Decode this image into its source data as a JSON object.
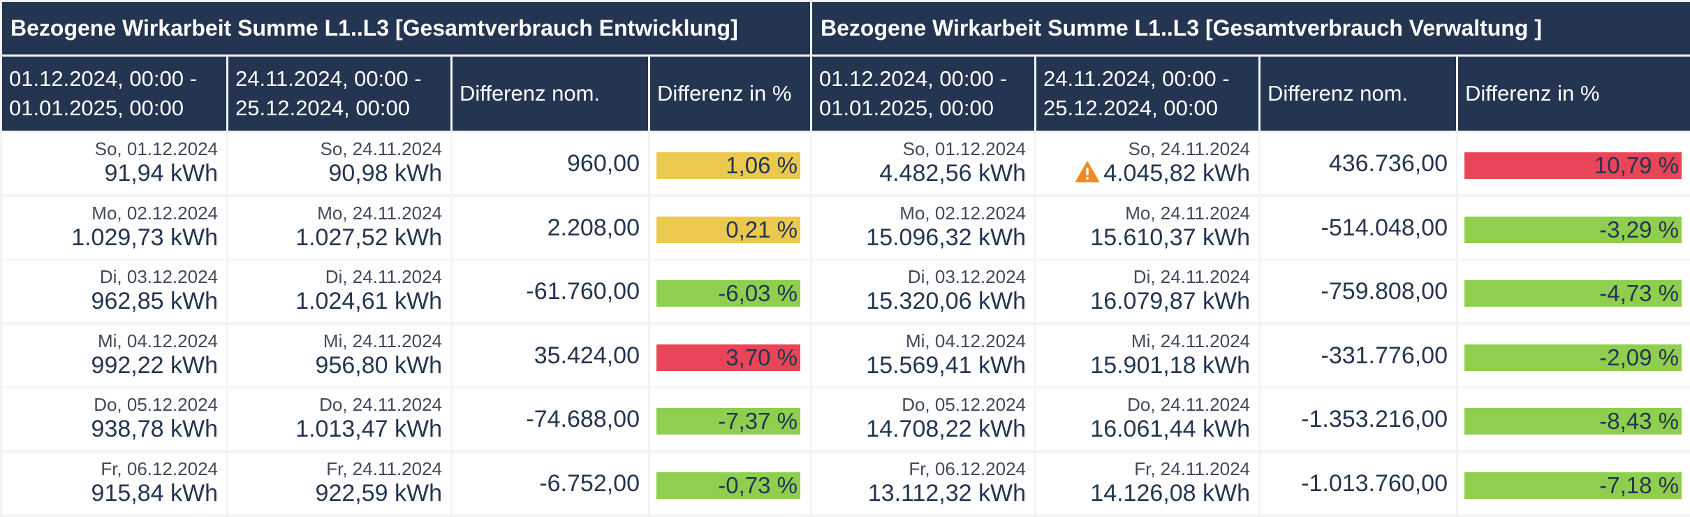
{
  "groups": [
    {
      "title": "Bezogene Wirkarbeit Summe L1..L3 [Gesamtverbrauch Entwicklung]",
      "headers": {
        "period_a_line1": "01.12.2024, 00:00 -",
        "period_a_line2": "01.01.2025, 00:00",
        "period_b_line1": "24.11.2024, 00:00 -",
        "period_b_line2": "25.12.2024, 00:00",
        "diff_nom": "Differenz nom.",
        "diff_pct": "Differenz in %"
      },
      "rows": [
        {
          "a_date": "So, 01.12.2024",
          "a_value": "91,94 kWh",
          "b_date": "So, 24.11.2024",
          "b_value": "90,98 kWh",
          "b_warning": false,
          "diff": "960,00",
          "pct": "1,06 %",
          "pct_value": 1.06,
          "status": "yellow"
        },
        {
          "a_date": "Mo, 02.12.2024",
          "a_value": "1.029,73 kWh",
          "b_date": "Mo, 24.11.2024",
          "b_value": "1.027,52 kWh",
          "b_warning": false,
          "diff": "2.208,00",
          "pct": "0,21 %",
          "pct_value": 0.21,
          "status": "yellow"
        },
        {
          "a_date": "Di, 03.12.2024",
          "a_value": "962,85 kWh",
          "b_date": "Di, 24.11.2024",
          "b_value": "1.024,61 kWh",
          "b_warning": false,
          "diff": "-61.760,00",
          "pct": "-6,03 %",
          "pct_value": -6.03,
          "status": "green"
        },
        {
          "a_date": "Mi, 04.12.2024",
          "a_value": "992,22 kWh",
          "b_date": "Mi, 24.11.2024",
          "b_value": "956,80 kWh",
          "b_warning": false,
          "diff": "35.424,00",
          "pct": "3,70 %",
          "pct_value": 3.7,
          "status": "red"
        },
        {
          "a_date": "Do, 05.12.2024",
          "a_value": "938,78 kWh",
          "b_date": "Do, 24.11.2024",
          "b_value": "1.013,47 kWh",
          "b_warning": false,
          "diff": "-74.688,00",
          "pct": "-7,37 %",
          "pct_value": -7.37,
          "status": "green"
        },
        {
          "a_date": "Fr, 06.12.2024",
          "a_value": "915,84 kWh",
          "b_date": "Fr, 24.11.2024",
          "b_value": "922,59 kWh",
          "b_warning": false,
          "diff": "-6.752,00",
          "pct": "-0,73 %",
          "pct_value": -0.73,
          "status": "green"
        }
      ]
    },
    {
      "title": "Bezogene Wirkarbeit Summe L1..L3 [Gesamtverbrauch Verwaltung ]",
      "headers": {
        "period_a_line1": "01.12.2024, 00:00 -",
        "period_a_line2": "01.01.2025, 00:00",
        "period_b_line1": "24.11.2024, 00:00 -",
        "period_b_line2": "25.12.2024, 00:00",
        "diff_nom": "Differenz nom.",
        "diff_pct": "Differenz in %"
      },
      "rows": [
        {
          "a_date": "So, 01.12.2024",
          "a_value": "4.482,56 kWh",
          "b_date": "So, 24.11.2024",
          "b_value": "4.045,82 kWh",
          "b_warning": true,
          "diff": "436.736,00",
          "pct": "10,79 %",
          "pct_value": 10.79,
          "status": "red"
        },
        {
          "a_date": "Mo, 02.12.2024",
          "a_value": "15.096,32 kWh",
          "b_date": "Mo, 24.11.2024",
          "b_value": "15.610,37 kWh",
          "b_warning": false,
          "diff": "-514.048,00",
          "pct": "-3,29 %",
          "pct_value": -3.29,
          "status": "green"
        },
        {
          "a_date": "Di, 03.12.2024",
          "a_value": "15.320,06 kWh",
          "b_date": "Di, 24.11.2024",
          "b_value": "16.079,87 kWh",
          "b_warning": false,
          "diff": "-759.808,00",
          "pct": "-4,73 %",
          "pct_value": -4.73,
          "status": "green"
        },
        {
          "a_date": "Mi, 04.12.2024",
          "a_value": "15.569,41 kWh",
          "b_date": "Mi, 24.11.2024",
          "b_value": "15.901,18 kWh",
          "b_warning": false,
          "diff": "-331.776,00",
          "pct": "-2,09 %",
          "pct_value": -2.09,
          "status": "green"
        },
        {
          "a_date": "Do, 05.12.2024",
          "a_value": "14.708,22 kWh",
          "b_date": "Do, 24.11.2024",
          "b_value": "16.061,44 kWh",
          "b_warning": false,
          "diff": "-1.353.216,00",
          "pct": "-8,43 %",
          "pct_value": -8.43,
          "status": "green"
        },
        {
          "a_date": "Fr, 06.12.2024",
          "a_value": "13.112,32 kWh",
          "b_date": "Fr, 24.11.2024",
          "b_value": "14.126,08 kWh",
          "b_warning": false,
          "diff": "-1.013.760,00",
          "pct": "-7,18 %",
          "pct_value": -7.18,
          "status": "green"
        }
      ]
    }
  ],
  "colors": {
    "header_bg": "#233550",
    "yellow": "#ebc94f",
    "green": "#8fce4e",
    "red": "#e94457",
    "warning": "#f08a24"
  },
  "icons": {
    "warning": "warning-triangle-icon"
  }
}
